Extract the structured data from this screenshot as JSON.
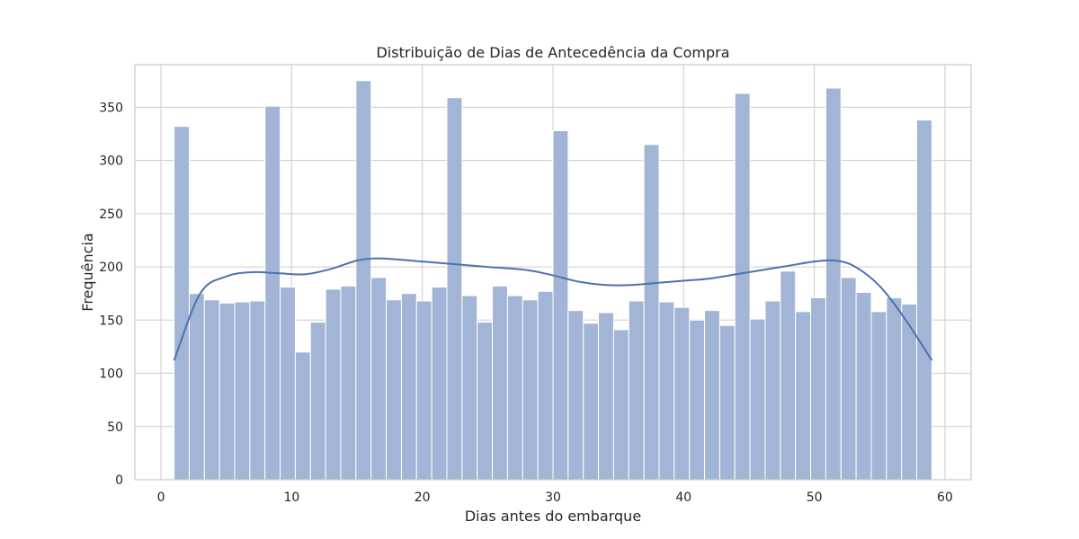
{
  "chart_data": {
    "type": "bar",
    "title": "Distribuição de Dias de Antecedência da Compra",
    "xlabel": "Dias antes do embarque",
    "ylabel": "Frequência",
    "xlim": [
      -2,
      62
    ],
    "ylim": [
      0,
      390
    ],
    "xticks": [
      0,
      10,
      20,
      30,
      40,
      50,
      60
    ],
    "yticks": [
      0,
      50,
      100,
      150,
      200,
      250,
      300,
      350
    ],
    "grid": true,
    "bin_edges": [
      1,
      2.16,
      3.32,
      4.48,
      5.64,
      6.8,
      7.96,
      9.12,
      10.28,
      11.44,
      12.6,
      13.76,
      14.92,
      16.08,
      17.24,
      18.4,
      19.56,
      20.72,
      21.88,
      23.04,
      24.2,
      25.36,
      26.52,
      27.68,
      28.84,
      30,
      31.16,
      32.32,
      33.48,
      34.64,
      35.8,
      36.96,
      38.12,
      39.28,
      40.44,
      41.6,
      42.76,
      43.92,
      45.08,
      46.24,
      47.4,
      48.56,
      49.72,
      50.88,
      52.04,
      53.2,
      54.36,
      55.52,
      56.68,
      57.84,
      59
    ],
    "values": [
      332,
      175,
      169,
      166,
      167,
      168,
      351,
      181,
      120,
      148,
      179,
      182,
      375,
      190,
      169,
      175,
      168,
      181,
      359,
      173,
      148,
      182,
      173,
      169,
      177,
      328,
      159,
      147,
      157,
      141,
      168,
      315,
      167,
      162,
      150,
      159,
      145,
      363,
      151,
      168,
      196,
      158,
      171,
      368,
      190,
      176,
      158,
      171,
      165,
      338
    ],
    "kde": {
      "x": [
        1,
        3,
        5,
        7,
        9,
        11,
        13,
        15,
        16.5,
        18,
        20,
        22,
        25,
        28,
        30,
        32,
        34,
        36,
        38,
        40,
        42,
        44,
        46,
        48,
        50,
        51.5,
        53,
        55,
        57,
        59
      ],
      "y": [
        112,
        175,
        191,
        195,
        194,
        193,
        198,
        206,
        208,
        207,
        205,
        203,
        200,
        197,
        192,
        186,
        183,
        183,
        185,
        187,
        189,
        193,
        197,
        201,
        205,
        206,
        201,
        182,
        150,
        112
      ]
    },
    "colors": {
      "bar_fill": "#a2b5d6",
      "bar_edge": "#ffffff",
      "line": "#4c72b0",
      "grid": "#cccccc",
      "frame": "#cccccc"
    }
  }
}
